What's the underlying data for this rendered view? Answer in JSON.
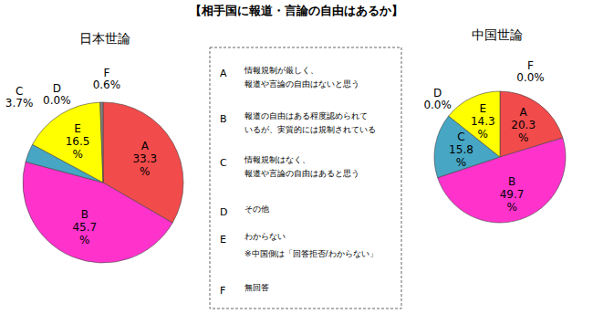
{
  "title": "【相手国に報道・言論の自由はあるか】",
  "legend_box": {
    "items": [
      {
        "key": "A",
        "lines": [
          "情報規制が厳しく、",
          "報道や言論の自由はないと思う"
        ]
      },
      {
        "key": "B",
        "lines": [
          "報道の自由はある程度認められて",
          "いるが、実質的には規制されている"
        ]
      },
      {
        "key": "C",
        "lines": [
          "情報規制はなく、",
          "報道や言論の自由はあると思う"
        ]
      },
      {
        "key": "D",
        "lines": [
          "その他"
        ]
      },
      {
        "key": "E",
        "lines": [
          "わからない"
        ],
        "note": "※中国側は「回答拒否/わからない」"
      },
      {
        "key": "F",
        "lines": [
          "無回答"
        ]
      }
    ]
  },
  "chart_data": [
    {
      "type": "pie",
      "title": "日本世論",
      "categories": [
        "A",
        "B",
        "C",
        "D",
        "E",
        "F"
      ],
      "values": [
        33.3,
        45.7,
        3.7,
        0.0,
        16.5,
        0.6
      ],
      "value_labels": [
        "33.3%",
        "45.7%",
        "3.7%",
        "0.0%",
        "16.5%",
        "0.6%"
      ],
      "colors": [
        "#f24b4b",
        "#ff33cc",
        "#46a6c4",
        "#9999ff",
        "#ffff00",
        "#808080"
      ],
      "data_labels": true
    },
    {
      "type": "pie",
      "title": "中国世論",
      "categories": [
        "A",
        "B",
        "C",
        "D",
        "E",
        "F"
      ],
      "values": [
        20.3,
        49.7,
        15.8,
        0.0,
        14.3,
        0.0
      ],
      "value_labels": [
        "20.3%",
        "49.7%",
        "15.8%",
        "0.0%",
        "14.3%",
        "0.0%"
      ],
      "colors": [
        "#f24b4b",
        "#ff33cc",
        "#46a6c4",
        "#9999ff",
        "#ffff00",
        "#808080"
      ],
      "data_labels": true
    }
  ]
}
